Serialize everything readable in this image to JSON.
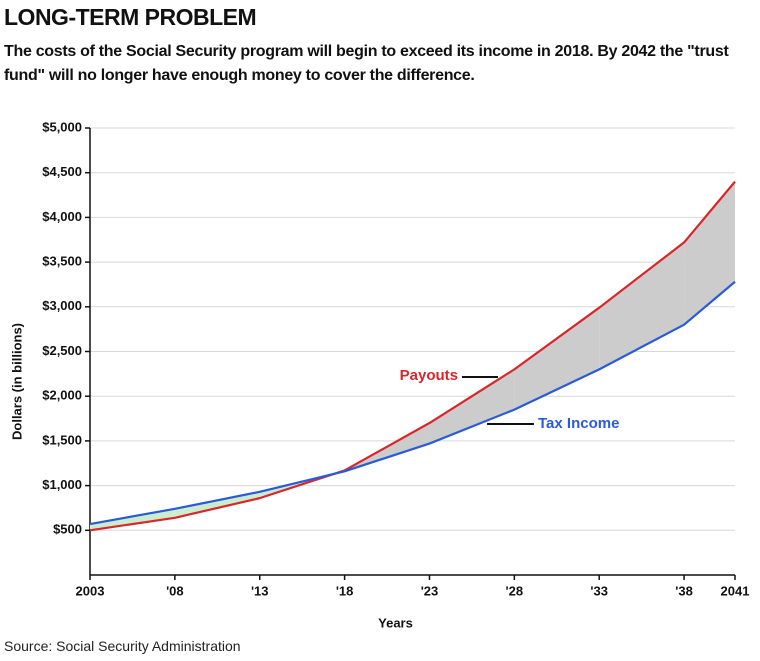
{
  "chart_data": {
    "type": "line",
    "title": "LONG-TERM PROBLEM",
    "subtitle": "The costs of the Social Security program will begin to exceed its income in 2018. By 2042 the \"trust fund\" will no longer have enough money to cover the difference.",
    "x_label": "Years",
    "y_label": "Dollars (in billions)",
    "source": "Source: Social Security Administration",
    "x": [
      2003,
      2008,
      2013,
      2018,
      2023,
      2028,
      2033,
      2038,
      2041
    ],
    "series": [
      {
        "name": "Payouts",
        "color": "#d9262b",
        "values": [
          500,
          640,
          860,
          1170,
          1700,
          2300,
          2990,
          3720,
          4400
        ]
      },
      {
        "name": "Tax Income",
        "color": "#2a5bd7",
        "values": [
          570,
          740,
          930,
          1160,
          1470,
          1850,
          2300,
          2800,
          3280
        ]
      }
    ],
    "xlim": [
      2003,
      2041
    ],
    "xticks": [
      2003,
      {
        "value": 2008,
        "label": "'08"
      },
      {
        "value": 2013,
        "label": "'13"
      },
      {
        "value": 2018,
        "label": "'18"
      },
      {
        "value": 2023,
        "label": "'23"
      },
      {
        "value": 2028,
        "label": "'28"
      },
      {
        "value": 2033,
        "label": "'33"
      },
      {
        "value": 2038,
        "label": "'38"
      },
      2041
    ],
    "ylim": [
      0,
      5000
    ],
    "yticks": [
      {
        "value": 500,
        "label": "$500"
      },
      {
        "value": 1000,
        "label": "$1,000"
      },
      {
        "value": 1500,
        "label": "$1,500"
      },
      {
        "value": 2000,
        "label": "$2,000"
      },
      {
        "value": 2500,
        "label": "$2,500"
      },
      {
        "value": 3000,
        "label": "$3,000"
      },
      {
        "value": 3500,
        "label": "$3,500"
      },
      {
        "value": 4000,
        "label": "$4,000"
      },
      {
        "value": 4500,
        "label": "$4,500"
      },
      {
        "value": 5000,
        "label": "$5,000"
      }
    ],
    "grid": true,
    "gap_color": "#cccccc",
    "surplus_color": "#cdeccd"
  }
}
